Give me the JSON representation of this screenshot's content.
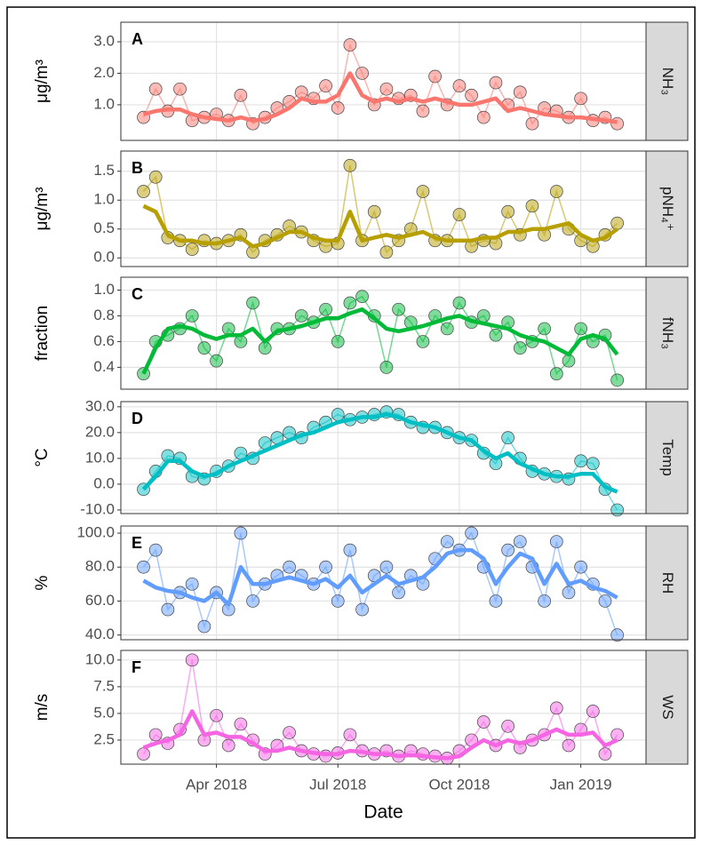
{
  "chart_data": [
    {
      "type": "line",
      "label": "A",
      "strip": "NH₃",
      "ylabel": "μg/m³",
      "xlim": [
        0.64,
        13.61
      ],
      "xticks": [
        {
          "value": 3,
          "label": "Apr 2018"
        },
        {
          "value": 6,
          "label": "Jul 2018"
        },
        {
          "value": 9,
          "label": "Oct 2018"
        },
        {
          "value": 12,
          "label": "Jan 2019"
        }
      ],
      "ylim": [
        -0.13,
        3.62
      ],
      "yticks": [
        {
          "value": 1,
          "label": "1.0"
        },
        {
          "value": 2,
          "label": "2.0"
        },
        {
          "value": 3,
          "label": "3.0"
        }
      ],
      "grid": true,
      "x": [
        1.2,
        1.5,
        1.8,
        2.1,
        2.4,
        2.7,
        3.0,
        3.3,
        3.6,
        3.9,
        4.2,
        4.5,
        4.8,
        5.1,
        5.4,
        5.7,
        6.0,
        6.3,
        6.6,
        6.9,
        7.2,
        7.5,
        7.8,
        8.1,
        8.4,
        8.7,
        9.0,
        9.3,
        9.6,
        9.9,
        10.2,
        10.5,
        10.8,
        11.1,
        11.4,
        11.7,
        12.0,
        12.3,
        12.6,
        12.9
      ],
      "series": [
        {
          "style": "points",
          "color": "#f8766d",
          "values": [
            0.6,
            1.5,
            0.8,
            1.5,
            0.5,
            0.6,
            0.7,
            0.5,
            1.3,
            0.4,
            0.6,
            0.9,
            1.1,
            1.4,
            1.2,
            1.6,
            0.9,
            2.9,
            2.0,
            1.0,
            1.5,
            1.2,
            1.3,
            0.8,
            1.9,
            1.0,
            1.6,
            1.3,
            0.6,
            1.7,
            1.0,
            1.4,
            0.4,
            0.9,
            0.8,
            0.6,
            1.2,
            0.5,
            0.6,
            0.4
          ]
        },
        {
          "style": "smooth",
          "color": "#f8766d",
          "values": [
            0.7,
            0.8,
            0.85,
            0.85,
            0.7,
            0.6,
            0.55,
            0.5,
            0.6,
            0.5,
            0.55,
            0.7,
            0.9,
            1.2,
            1.1,
            1.1,
            1.3,
            2.0,
            1.3,
            1.1,
            1.2,
            1.1,
            1.2,
            1.1,
            1.2,
            1.1,
            1.0,
            1.0,
            1.1,
            1.2,
            0.8,
            0.9,
            0.8,
            0.7,
            0.65,
            0.6,
            0.6,
            0.55,
            0.5,
            0.45
          ]
        }
      ]
    },
    {
      "type": "line",
      "label": "B",
      "strip": "pNH₄⁺",
      "ylabel": "μg/m³",
      "xlim": [
        0.64,
        13.61
      ],
      "xticks": [
        {
          "value": 3,
          "label": "Apr 2018"
        },
        {
          "value": 6,
          "label": "Jul 2018"
        },
        {
          "value": 9,
          "label": "Oct 2018"
        },
        {
          "value": 12,
          "label": "Jan 2019"
        }
      ],
      "ylim": [
        -0.15,
        1.85
      ],
      "yticks": [
        {
          "value": 0,
          "label": "0.0"
        },
        {
          "value": 0.5,
          "label": "0.5"
        },
        {
          "value": 1,
          "label": "1.0"
        },
        {
          "value": 1.5,
          "label": "1.5"
        }
      ],
      "grid": true,
      "x": [
        1.2,
        1.5,
        1.8,
        2.1,
        2.4,
        2.7,
        3.0,
        3.3,
        3.6,
        3.9,
        4.2,
        4.5,
        4.8,
        5.1,
        5.4,
        5.7,
        6.0,
        6.3,
        6.6,
        6.9,
        7.2,
        7.5,
        7.8,
        8.1,
        8.4,
        8.7,
        9.0,
        9.3,
        9.6,
        9.9,
        10.2,
        10.5,
        10.8,
        11.1,
        11.4,
        11.7,
        12.0,
        12.3,
        12.6,
        12.9
      ],
      "series": [
        {
          "style": "points",
          "color": "#b79f00",
          "values": [
            1.15,
            1.4,
            0.35,
            0.3,
            0.15,
            0.3,
            0.25,
            0.3,
            0.4,
            0.1,
            0.3,
            0.4,
            0.55,
            0.45,
            0.3,
            0.2,
            0.25,
            1.6,
            0.3,
            0.8,
            0.1,
            0.3,
            0.5,
            1.15,
            0.3,
            0.3,
            0.75,
            0.2,
            0.3,
            0.25,
            0.8,
            0.4,
            0.9,
            0.4,
            1.15,
            0.5,
            0.3,
            0.2,
            0.4,
            0.6
          ]
        },
        {
          "style": "smooth",
          "color": "#b79f00",
          "values": [
            0.9,
            0.8,
            0.4,
            0.3,
            0.3,
            0.25,
            0.25,
            0.3,
            0.35,
            0.2,
            0.25,
            0.35,
            0.45,
            0.45,
            0.35,
            0.3,
            0.3,
            0.8,
            0.3,
            0.35,
            0.4,
            0.35,
            0.4,
            0.45,
            0.35,
            0.3,
            0.3,
            0.3,
            0.35,
            0.35,
            0.45,
            0.45,
            0.5,
            0.5,
            0.55,
            0.6,
            0.4,
            0.3,
            0.35,
            0.5
          ]
        }
      ]
    },
    {
      "type": "line",
      "label": "C",
      "strip": "fNH₃",
      "ylabel": "fraction",
      "xlim": [
        0.64,
        13.61
      ],
      "xticks": [
        {
          "value": 3,
          "label": "Apr 2018"
        },
        {
          "value": 6,
          "label": "Jul 2018"
        },
        {
          "value": 9,
          "label": "Oct 2018"
        },
        {
          "value": 12,
          "label": "Jan 2019"
        }
      ],
      "ylim": [
        0.23,
        1.1
      ],
      "yticks": [
        {
          "value": 0.4,
          "label": "0.4"
        },
        {
          "value": 0.6,
          "label": "0.6"
        },
        {
          "value": 0.8,
          "label": "0.8"
        },
        {
          "value": 1,
          "label": "1.0"
        }
      ],
      "grid": true,
      "x": [
        1.2,
        1.5,
        1.8,
        2.1,
        2.4,
        2.7,
        3.0,
        3.3,
        3.6,
        3.9,
        4.2,
        4.5,
        4.8,
        5.1,
        5.4,
        5.7,
        6.0,
        6.3,
        6.6,
        6.9,
        7.2,
        7.5,
        7.8,
        8.1,
        8.4,
        8.7,
        9.0,
        9.3,
        9.6,
        9.9,
        10.2,
        10.5,
        10.8,
        11.1,
        11.4,
        11.7,
        12.0,
        12.3,
        12.6,
        12.9
      ],
      "series": [
        {
          "style": "points",
          "color": "#00ba38",
          "values": [
            0.35,
            0.6,
            0.65,
            0.7,
            0.8,
            0.55,
            0.45,
            0.7,
            0.6,
            0.9,
            0.55,
            0.7,
            0.7,
            0.8,
            0.75,
            0.85,
            0.6,
            0.9,
            0.95,
            0.8,
            0.4,
            0.85,
            0.75,
            0.6,
            0.8,
            0.7,
            0.9,
            0.75,
            0.8,
            0.65,
            0.75,
            0.55,
            0.6,
            0.7,
            0.35,
            0.45,
            0.7,
            0.6,
            0.65,
            0.3
          ]
        },
        {
          "style": "smooth",
          "color": "#00ba38",
          "values": [
            0.35,
            0.55,
            0.7,
            0.72,
            0.7,
            0.65,
            0.62,
            0.65,
            0.65,
            0.7,
            0.6,
            0.68,
            0.7,
            0.72,
            0.75,
            0.78,
            0.78,
            0.82,
            0.85,
            0.78,
            0.7,
            0.68,
            0.7,
            0.72,
            0.75,
            0.78,
            0.8,
            0.76,
            0.74,
            0.72,
            0.7,
            0.65,
            0.62,
            0.6,
            0.55,
            0.5,
            0.62,
            0.65,
            0.62,
            0.5
          ]
        }
      ]
    },
    {
      "type": "line",
      "label": "D",
      "strip": "Temp",
      "ylabel": "°C",
      "xlim": [
        0.64,
        13.61
      ],
      "xticks": [
        {
          "value": 3,
          "label": "Apr 2018"
        },
        {
          "value": 6,
          "label": "Jul 2018"
        },
        {
          "value": 9,
          "label": "Oct 2018"
        },
        {
          "value": 12,
          "label": "Jan 2019"
        }
      ],
      "ylim": [
        -11.4,
        32
      ],
      "yticks": [
        {
          "value": -10,
          "label": "-10.0"
        },
        {
          "value": 0,
          "label": "0.0"
        },
        {
          "value": 10,
          "label": "10.0"
        },
        {
          "value": 20,
          "label": "20.0"
        },
        {
          "value": 30,
          "label": "30.0"
        }
      ],
      "grid": true,
      "x": [
        1.2,
        1.5,
        1.8,
        2.1,
        2.4,
        2.7,
        3.0,
        3.3,
        3.6,
        3.9,
        4.2,
        4.5,
        4.8,
        5.1,
        5.4,
        5.7,
        6.0,
        6.3,
        6.6,
        6.9,
        7.2,
        7.5,
        7.8,
        8.1,
        8.4,
        8.7,
        9.0,
        9.3,
        9.6,
        9.9,
        10.2,
        10.5,
        10.8,
        11.1,
        11.4,
        11.7,
        12.0,
        12.3,
        12.6,
        12.9
      ],
      "series": [
        {
          "style": "points",
          "color": "#00bfc4",
          "values": [
            -2,
            5,
            11,
            10,
            3,
            2,
            5,
            7,
            12,
            10,
            16,
            18,
            20,
            18,
            22,
            24,
            27,
            25,
            26,
            27,
            28,
            27,
            24,
            22,
            22,
            20,
            18,
            17,
            12,
            8,
            18,
            10,
            5,
            4,
            3,
            2,
            9,
            8,
            -2,
            -10
          ]
        },
        {
          "style": "smooth",
          "color": "#00bfc4",
          "values": [
            -2,
            3,
            9,
            9,
            5,
            3,
            4,
            7,
            9,
            11,
            13,
            15,
            17,
            19,
            20,
            22,
            24,
            25,
            26,
            26,
            27,
            26,
            24,
            23,
            22,
            20,
            18,
            17,
            13,
            10,
            12,
            8,
            6,
            4,
            3,
            3,
            4,
            4,
            -1,
            -3
          ]
        }
      ]
    },
    {
      "type": "line",
      "label": "E",
      "strip": "RH",
      "ylabel": "%",
      "xlim": [
        0.64,
        13.61
      ],
      "xticks": [
        {
          "value": 3,
          "label": "Apr 2018"
        },
        {
          "value": 6,
          "label": "Jul 2018"
        },
        {
          "value": 9,
          "label": "Oct 2018"
        },
        {
          "value": 12,
          "label": "Jan 2019"
        }
      ],
      "ylim": [
        37.2,
        104.2
      ],
      "yticks": [
        {
          "value": 40,
          "label": "40.0"
        },
        {
          "value": 60,
          "label": "60.0"
        },
        {
          "value": 80,
          "label": "80.0"
        },
        {
          "value": 100,
          "label": "100.0"
        }
      ],
      "grid": true,
      "x": [
        1.2,
        1.5,
        1.8,
        2.1,
        2.4,
        2.7,
        3.0,
        3.3,
        3.6,
        3.9,
        4.2,
        4.5,
        4.8,
        5.1,
        5.4,
        5.7,
        6.0,
        6.3,
        6.6,
        6.9,
        7.2,
        7.5,
        7.8,
        8.1,
        8.4,
        8.7,
        9.0,
        9.3,
        9.6,
        9.9,
        10.2,
        10.5,
        10.8,
        11.1,
        11.4,
        11.7,
        12.0,
        12.3,
        12.6,
        12.9
      ],
      "series": [
        {
          "style": "points",
          "color": "#619cff",
          "values": [
            80,
            90,
            55,
            65,
            70,
            45,
            65,
            55,
            100,
            60,
            70,
            75,
            80,
            75,
            70,
            80,
            60,
            90,
            55,
            75,
            80,
            65,
            75,
            70,
            85,
            95,
            90,
            100,
            80,
            60,
            90,
            95,
            80,
            60,
            95,
            65,
            80,
            70,
            60,
            40
          ]
        },
        {
          "style": "smooth",
          "color": "#619cff",
          "values": [
            72,
            68,
            66,
            65,
            62,
            60,
            65,
            58,
            80,
            70,
            70,
            72,
            74,
            72,
            70,
            73,
            68,
            75,
            65,
            70,
            75,
            70,
            72,
            74,
            80,
            88,
            90,
            90,
            85,
            70,
            80,
            88,
            85,
            70,
            82,
            70,
            72,
            68,
            66,
            62
          ]
        }
      ]
    },
    {
      "type": "line",
      "label": "F",
      "strip": "WS",
      "ylabel": "m/s",
      "xlabel": "Date",
      "xlim": [
        0.64,
        13.61
      ],
      "xticks": [
        {
          "value": 3,
          "label": "Apr 2018"
        },
        {
          "value": 6,
          "label": "Jul 2018"
        },
        {
          "value": 9,
          "label": "Oct 2018"
        },
        {
          "value": 12,
          "label": "Jan 2019"
        }
      ],
      "ylim": [
        0.25,
        10.9
      ],
      "yticks": [
        2.5,
        {
          "value": 5,
          "label": "5.0"
        },
        7.5,
        {
          "value": 10,
          "label": "10.0"
        }
      ],
      "grid": true,
      "x": [
        1.2,
        1.5,
        1.8,
        2.1,
        2.4,
        2.7,
        3.0,
        3.3,
        3.6,
        3.9,
        4.2,
        4.5,
        4.8,
        5.1,
        5.4,
        5.7,
        6.0,
        6.3,
        6.6,
        6.9,
        7.2,
        7.5,
        7.8,
        8.1,
        8.4,
        8.7,
        9.0,
        9.3,
        9.6,
        9.9,
        10.2,
        10.5,
        10.8,
        11.1,
        11.4,
        11.7,
        12.0,
        12.3,
        12.6,
        12.9
      ],
      "series": [
        {
          "style": "points",
          "color": "#f564e3",
          "values": [
            1.2,
            3.0,
            2.2,
            3.5,
            10.0,
            2.5,
            4.8,
            2.0,
            4.0,
            2.5,
            1.2,
            2.0,
            3.2,
            1.5,
            1.2,
            1.0,
            1.3,
            3.0,
            1.5,
            1.2,
            1.5,
            1.0,
            1.5,
            1.2,
            1.0,
            0.8,
            1.5,
            2.5,
            4.2,
            2.0,
            3.8,
            1.8,
            2.5,
            3.0,
            5.5,
            2.0,
            3.5,
            5.2,
            1.2,
            3.0
          ]
        },
        {
          "style": "smooth",
          "color": "#f564e3",
          "values": [
            1.8,
            2.2,
            2.5,
            3.0,
            5.2,
            3.0,
            3.2,
            2.8,
            2.8,
            2.2,
            1.5,
            1.5,
            1.8,
            1.5,
            1.3,
            1.2,
            1.2,
            1.5,
            1.4,
            1.2,
            1.2,
            1.0,
            1.1,
            1.0,
            0.9,
            0.8,
            1.0,
            1.8,
            2.5,
            2.0,
            2.5,
            2.2,
            2.5,
            3.0,
            3.5,
            3.0,
            3.0,
            3.2,
            2.0,
            2.5
          ]
        }
      ]
    }
  ]
}
